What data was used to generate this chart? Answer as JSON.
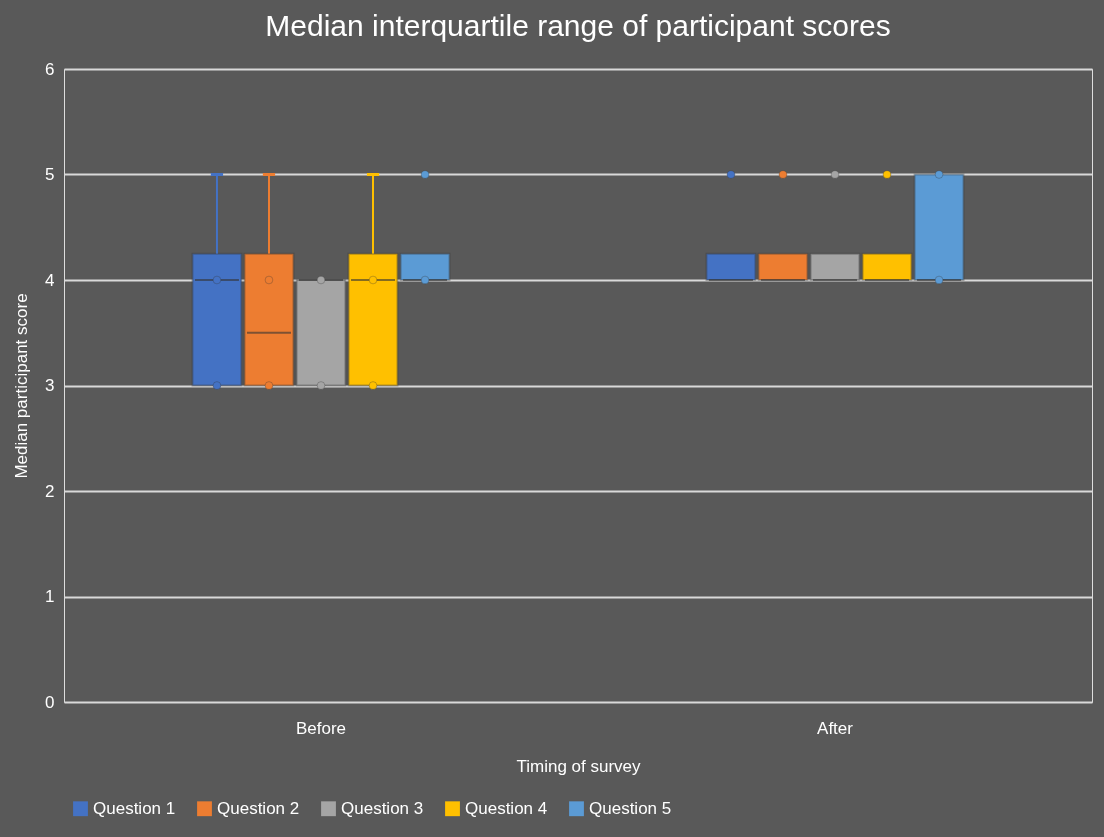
{
  "chart_data": {
    "type": "box",
    "title": "Median interquartile range of participant scores",
    "xlabel": "Timing of survey",
    "ylabel": "Median participant score",
    "categories": [
      "Before",
      "After"
    ],
    "ylim": [
      0,
      6
    ],
    "yticks": [
      0,
      1,
      2,
      3,
      4,
      5,
      6
    ],
    "grid": "y",
    "legend": "bottom",
    "series": [
      {
        "name": "Question 1",
        "color": "#4472c4",
        "boxes": [
          {
            "low": 3,
            "q1": 3,
            "median": 4,
            "q3": 4.25,
            "high": 5,
            "outliers": [
              3,
              4
            ]
          },
          {
            "low": 4,
            "q1": 4,
            "median": 4,
            "q3": 4.25,
            "high": 4.25,
            "outliers": [
              5
            ]
          }
        ]
      },
      {
        "name": "Question 2",
        "color": "#ed7d31",
        "boxes": [
          {
            "low": 3,
            "q1": 3,
            "median": 3.5,
            "q3": 4.25,
            "high": 5,
            "outliers": [
              3,
              4
            ]
          },
          {
            "low": 4,
            "q1": 4,
            "median": 4,
            "q3": 4.25,
            "high": 4.25,
            "outliers": [
              5
            ]
          }
        ]
      },
      {
        "name": "Question 3",
        "color": "#a5a5a5",
        "boxes": [
          {
            "low": 3,
            "q1": 3,
            "median": 4,
            "q3": 4,
            "high": 4,
            "outliers": [
              3,
              4
            ]
          },
          {
            "low": 4,
            "q1": 4,
            "median": 4,
            "q3": 4.25,
            "high": 4.25,
            "outliers": [
              5
            ]
          }
        ]
      },
      {
        "name": "Question 4",
        "color": "#ffc000",
        "boxes": [
          {
            "low": 3,
            "q1": 3,
            "median": 4,
            "q3": 4.25,
            "high": 5,
            "outliers": [
              3,
              4
            ]
          },
          {
            "low": 4,
            "q1": 4,
            "median": 4,
            "q3": 4.25,
            "high": 4.25,
            "outliers": [
              5
            ]
          }
        ]
      },
      {
        "name": "Question 5",
        "color": "#5b9bd5",
        "boxes": [
          {
            "low": 4,
            "q1": 4,
            "median": 4,
            "q3": 4.25,
            "high": 4.25,
            "outliers": [
              4,
              5
            ]
          },
          {
            "low": 4,
            "q1": 4,
            "median": 4,
            "q3": 5,
            "high": 5,
            "outliers": [
              4,
              5
            ]
          }
        ]
      }
    ]
  }
}
